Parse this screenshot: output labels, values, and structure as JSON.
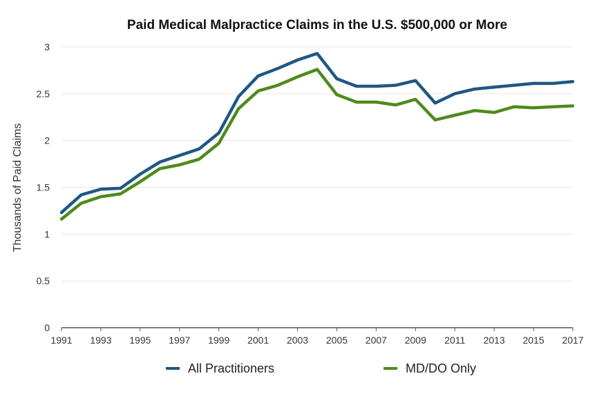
{
  "chart_data": {
    "type": "line",
    "title": "Paid Medical Malpractice Claims in the U.S.  $500,000 or More",
    "xlabel": "",
    "ylabel": "Thousands of Paid Claims",
    "ylim": [
      0,
      3
    ],
    "xlim": [
      1991,
      2017
    ],
    "grid": true,
    "legend_position": "bottom",
    "x": [
      1991,
      1992,
      1993,
      1994,
      1995,
      1996,
      1997,
      1998,
      1999,
      2000,
      2001,
      2002,
      2003,
      2004,
      2005,
      2006,
      2007,
      2008,
      2009,
      2010,
      2011,
      2012,
      2013,
      2014,
      2015,
      2016,
      2017
    ],
    "x_tick_labels": [
      "1991",
      "1993",
      "1995",
      "1997",
      "1999",
      "2001",
      "2003",
      "2005",
      "2007",
      "2009",
      "2011",
      "2013",
      "2015",
      "2017"
    ],
    "y_tick_labels": [
      "0",
      "0.5",
      "1",
      "1.5",
      "2",
      "2.5",
      "3"
    ],
    "y_ticks": [
      0,
      0.5,
      1,
      1.5,
      2,
      2.5,
      3
    ],
    "series": [
      {
        "name": "All Practitioners",
        "color": "#1f5784",
        "values": [
          1.23,
          1.42,
          1.48,
          1.49,
          1.64,
          1.77,
          1.84,
          1.91,
          2.08,
          2.47,
          2.69,
          2.77,
          2.86,
          2.93,
          2.66,
          2.58,
          2.58,
          2.59,
          2.64,
          2.4,
          2.5,
          2.55,
          2.57,
          2.59,
          2.61,
          2.61,
          2.63
        ]
      },
      {
        "name": "MD/DO Only",
        "color": "#4f8a1c",
        "values": [
          1.16,
          1.33,
          1.4,
          1.43,
          1.56,
          1.7,
          1.74,
          1.8,
          1.97,
          2.34,
          2.53,
          2.59,
          2.68,
          2.76,
          2.49,
          2.41,
          2.41,
          2.38,
          2.44,
          2.22,
          2.27,
          2.32,
          2.3,
          2.36,
          2.35,
          2.36,
          2.37
        ]
      }
    ]
  }
}
